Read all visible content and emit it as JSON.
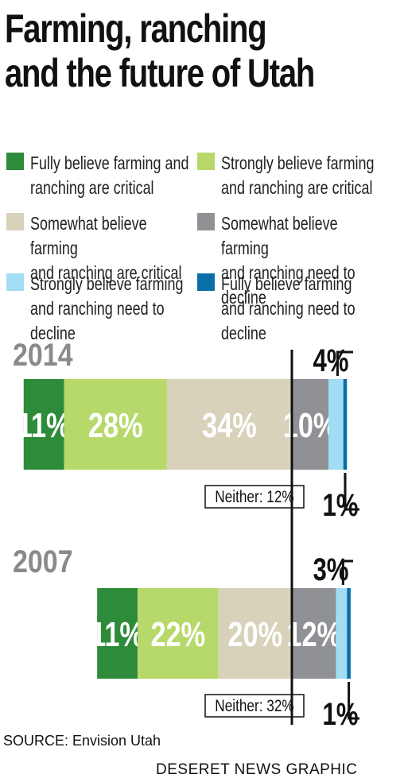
{
  "title_line1": "Farming, ranching",
  "title_line2": "and the future of Utah",
  "legend": [
    {
      "label": "Fully believe farming and\nranching are critical",
      "color": "#2e8b3a"
    },
    {
      "label": "Strongly believe farming\nand ranching are critical",
      "color": "#b7d96b"
    },
    {
      "label": "Somewhat believe farming\nand ranching are critical",
      "color": "#d8d2bb"
    },
    {
      "label": "Somewhat believe farming\nand ranching need to decline",
      "color": "#8f9194"
    },
    {
      "label": "Strongly believe farming\nand ranching need to decline",
      "color": "#a3ddf4"
    },
    {
      "label": "Fully believe farming\nand ranching need to decline",
      "color": "#0a6fa8"
    }
  ],
  "chart_data": {
    "type": "bar",
    "orientation": "horizontal",
    "stacked": true,
    "categories": [
      "Fully critical",
      "Strongly critical",
      "Somewhat critical",
      "Somewhat decline",
      "Strongly decline",
      "Fully decline"
    ],
    "series": [
      {
        "name": "2014",
        "values": [
          11,
          28,
          34,
          10,
          4,
          1
        ],
        "labels": [
          "11%",
          "28%",
          "34%",
          "10%",
          "4%",
          "1%"
        ],
        "neither": "Neither: 12%"
      },
      {
        "name": "2007",
        "values": [
          11,
          22,
          20,
          12,
          3,
          1
        ],
        "labels": [
          "11%",
          "22%",
          "20%",
          "12%",
          "3%",
          "1%"
        ],
        "neither": "Neither: 32%"
      }
    ]
  },
  "source": "SOURCE: Envision Utah",
  "credit": "DESERET NEWS GRAPHIC"
}
